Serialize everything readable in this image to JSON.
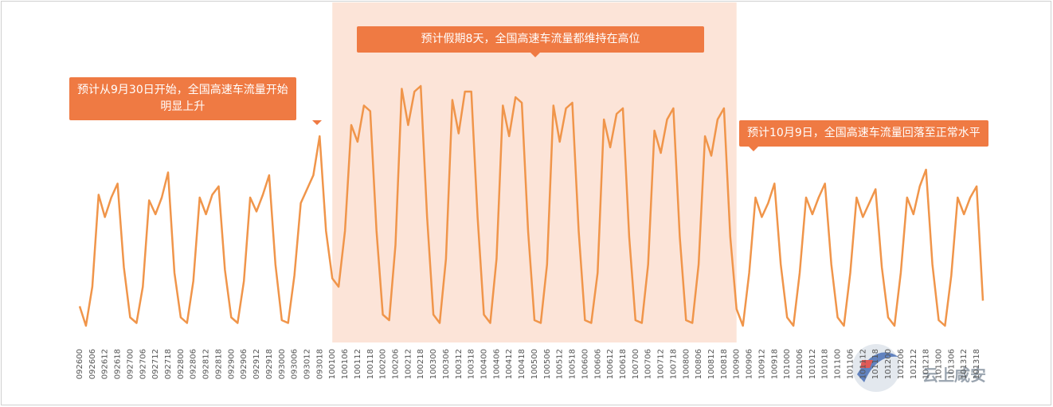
{
  "chart_data": {
    "type": "line",
    "color": "#f0954a",
    "ylim": [
      0,
      100
    ],
    "highlight": {
      "from": "100100",
      "to": "100900",
      "color": "#fce4d8"
    },
    "annotations": [
      {
        "lines": [
          "预计从9月30日开始，全国高速车流量开始",
          "明显上升"
        ]
      },
      {
        "lines": [
          "预计假期8天，全国高速车流量都维持在高位"
        ]
      },
      {
        "lines": [
          "预计10月9日，全国高速车流量回落至正常水平"
        ]
      }
    ],
    "watermark": "云上咸安",
    "categories": [
      "092600",
      null,
      "092606",
      null,
      "092612",
      null,
      "092618",
      null,
      "092700",
      null,
      "092706",
      null,
      "092712",
      null,
      "092718",
      null,
      "092800",
      null,
      "092806",
      null,
      "092812",
      null,
      "092818",
      null,
      "092900",
      null,
      "092906",
      null,
      "092912",
      null,
      "092918",
      null,
      "093000",
      null,
      "093006",
      null,
      "093012",
      null,
      "093018",
      null,
      "100100",
      null,
      "100106",
      null,
      "100112",
      null,
      "100118",
      null,
      "100200",
      null,
      "100206",
      null,
      "100212",
      null,
      "100218",
      null,
      "100300",
      null,
      "100306",
      null,
      "100312",
      null,
      "100318",
      null,
      "100400",
      null,
      "100406",
      null,
      "100412",
      null,
      "100418",
      null,
      "100500",
      null,
      "100506",
      null,
      "100512",
      null,
      "100518",
      null,
      "100600",
      null,
      "100606",
      null,
      "100612",
      null,
      "100618",
      null,
      "100700",
      null,
      "100706",
      null,
      "100712",
      null,
      "100718",
      null,
      "100800",
      null,
      "100806",
      null,
      "100812",
      null,
      "100818",
      null,
      "100900",
      null,
      "100906",
      null,
      "100912",
      null,
      "100918",
      null,
      "101000",
      null,
      "101006",
      null,
      "101012",
      null,
      "101018",
      null,
      "101100",
      null,
      "101106",
      null,
      "101112",
      null,
      "101118",
      null,
      "101200",
      null,
      "101206",
      null,
      "101212",
      null,
      "101218",
      null,
      "101300",
      null,
      "101306",
      null,
      "101312",
      null,
      "101318",
      null
    ],
    "values": [
      13,
      6,
      20,
      53,
      45,
      52,
      57,
      27,
      9,
      7,
      20,
      51,
      46,
      52,
      61,
      25,
      9,
      7,
      22,
      52,
      46,
      53,
      56,
      26,
      9,
      7,
      22,
      52,
      47,
      53,
      60,
      28,
      8,
      7,
      24,
      50,
      55,
      60,
      74,
      40,
      23,
      20,
      40,
      78,
      72,
      85,
      83,
      40,
      10,
      8,
      35,
      91,
      78,
      90,
      92,
      45,
      10,
      7,
      30,
      87,
      75,
      90,
      90,
      45,
      10,
      7,
      30,
      85,
      74,
      88,
      86,
      40,
      8,
      7,
      28,
      85,
      72,
      84,
      86,
      40,
      8,
      7,
      25,
      80,
      70,
      82,
      84,
      38,
      8,
      7,
      28,
      76,
      68,
      80,
      84,
      38,
      8,
      7,
      28,
      74,
      67,
      80,
      84,
      38,
      12,
      6,
      25,
      52,
      45,
      50,
      57,
      28,
      9,
      6,
      25,
      52,
      46,
      52,
      57,
      28,
      9,
      6,
      25,
      52,
      45,
      50,
      55,
      27,
      9,
      6,
      25,
      52,
      46,
      56,
      62,
      28,
      8,
      6,
      24,
      52,
      46,
      52,
      56,
      15
    ]
  }
}
